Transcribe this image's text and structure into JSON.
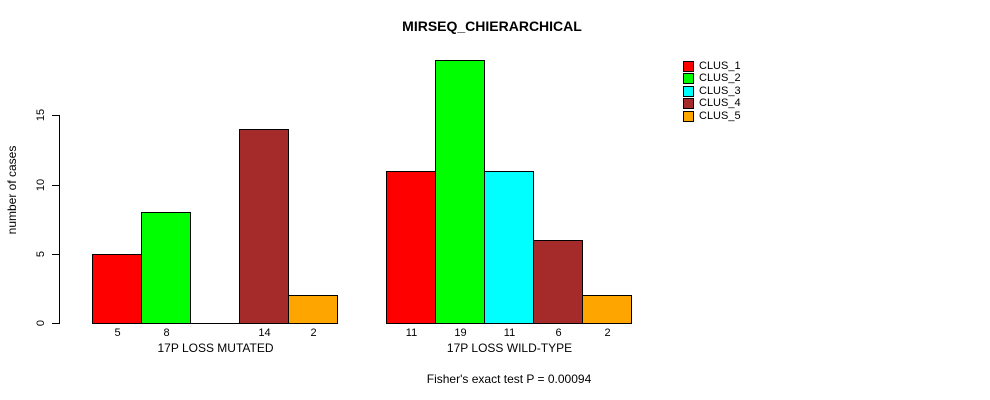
{
  "chart_data": {
    "type": "bar",
    "title": "MIRSEQ_CHIERARCHICAL",
    "ylabel": "number of cases",
    "yticks": [
      0,
      5,
      10,
      15
    ],
    "ylim": [
      0,
      19
    ],
    "grid": false,
    "legend_position": "top-right",
    "background_color": "#ffffff",
    "axis_color": "#000000",
    "series": [
      {
        "name": "CLUS_1",
        "color": "#FF0000"
      },
      {
        "name": "CLUS_2",
        "color": "#00FF00"
      },
      {
        "name": "CLUS_3",
        "color": "#00FFFF"
      },
      {
        "name": "CLUS_4",
        "color": "#A52A2A"
      },
      {
        "name": "CLUS_5",
        "color": "#FFA500"
      }
    ],
    "groups": [
      {
        "label": "17P LOSS MUTATED",
        "values": [
          5,
          8,
          0,
          14,
          2
        ],
        "bar_labels": [
          "5",
          "8",
          "",
          "14",
          "2"
        ]
      },
      {
        "label": "17P LOSS WILD-TYPE",
        "values": [
          11,
          19,
          11,
          6,
          2
        ],
        "bar_labels": [
          "11",
          "19",
          "11",
          "6",
          "2"
        ]
      }
    ],
    "footnote": "Fisher's exact test P = 0.00094"
  }
}
